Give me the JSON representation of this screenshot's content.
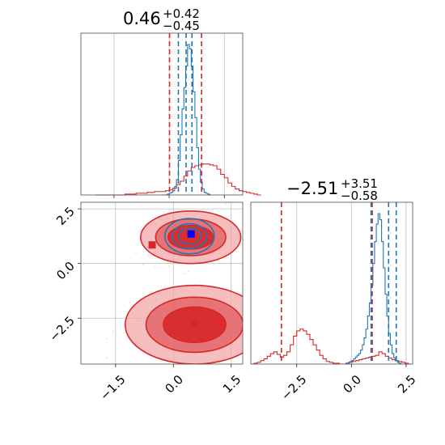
{
  "colors": {
    "red": "#d62728",
    "blue": "#1f77b4",
    "red_fill": "#f4a3a4",
    "red_mid": "#e05a5c"
  },
  "chart_data": [
    {
      "type": "histogram",
      "panel": "top-left",
      "title": {
        "value": "0.46",
        "plus": "+0.42",
        "minus": "−0.45"
      },
      "xlim": [
        -2.4,
        2.0
      ],
      "xticks": [
        -1.5,
        0.0,
        1.5
      ],
      "series": [
        {
          "color": "#d62728",
          "bin_edges_start": -2.0,
          "bin_width": 0.1,
          "counts": [
            0,
            0,
            0,
            0,
            0,
            0,
            0,
            0,
            1,
            1,
            1,
            2,
            2,
            2,
            3,
            3,
            4,
            4,
            4,
            5,
            6,
            8,
            12,
            16,
            22,
            28,
            32,
            34,
            35,
            36,
            36,
            35,
            34,
            30,
            24,
            20,
            14,
            10,
            7,
            5,
            4,
            3,
            2,
            1,
            0
          ]
        },
        {
          "color": "#1f77b4",
          "bin_edges_start": -0.2,
          "bin_width": 0.05,
          "counts": [
            0,
            0,
            0,
            1,
            2,
            3,
            5,
            10,
            18,
            40,
            70,
            100,
            125,
            150,
            175,
            170,
            150,
            120,
            90,
            55,
            30,
            15,
            7,
            3,
            2,
            1,
            0
          ]
        }
      ],
      "quantile_lines": [
        {
          "color": "#d62728",
          "x": 0.01
        },
        {
          "color": "#d62728",
          "x": 0.88
        },
        {
          "color": "#1f77b4",
          "x": 0.25
        },
        {
          "color": "#1f77b4",
          "x": 0.46
        },
        {
          "color": "#1f77b4",
          "x": 0.62
        }
      ]
    },
    {
      "type": "contour",
      "panel": "bottom-left",
      "xlim": [
        -2.4,
        1.8
      ],
      "ylim": [
        -4.6,
        2.8
      ],
      "xticks": [
        -1.5,
        0.0,
        1.5
      ],
      "yticks": [
        -2.5,
        0.0,
        2.5
      ],
      "red_modes": [
        {
          "cx": 0.45,
          "cy": 1.2,
          "sx": 0.65,
          "sy": 0.6
        },
        {
          "cx": 0.55,
          "cy": -2.8,
          "sx": 0.9,
          "sy": 0.9
        }
      ],
      "blue_mode": {
        "cx": 0.42,
        "cy": 1.25,
        "sx": 0.32,
        "sy": 0.45
      },
      "red_markers": [
        {
          "x": -0.55,
          "y": 0.85
        },
        {
          "x": 0.55,
          "y": -2.7
        }
      ],
      "blue_marker": {
        "x": 0.46,
        "y": 1.35
      }
    },
    {
      "type": "histogram",
      "panel": "bottom-right",
      "title": {
        "value": "−2.51",
        "plus": "+3.51",
        "minus": "−0.58"
      },
      "xlim": [
        -4.6,
        2.8
      ],
      "xticks": [
        -2.5,
        0.0,
        2.5
      ],
      "series": [
        {
          "color": "#d62728",
          "bin_edges_start": -4.6,
          "bin_width": 0.15,
          "counts": [
            0,
            1,
            2,
            4,
            6,
            9,
            12,
            14,
            11,
            8,
            10,
            14,
            22,
            32,
            38,
            40,
            38,
            34,
            28,
            22,
            16,
            10,
            6,
            3,
            2,
            1,
            1,
            0,
            0,
            1,
            2,
            3,
            4,
            5,
            6,
            7,
            8,
            9,
            10,
            14,
            12,
            9,
            7,
            5,
            4,
            3,
            2,
            1,
            0
          ]
        },
        {
          "color": "#1f77b4",
          "bin_edges_start": -0.3,
          "bin_width": 0.08,
          "counts": [
            0,
            1,
            2,
            3,
            4,
            6,
            8,
            10,
            12,
            16,
            22,
            30,
            40,
            55,
            70,
            90,
            115,
            140,
            160,
            172,
            165,
            140,
            110,
            80,
            55,
            35,
            22,
            12,
            7,
            4,
            2,
            1,
            0
          ]
        }
      ],
      "quantile_lines": [
        {
          "color": "#d62728",
          "x": -3.2
        },
        {
          "color": "#d62728",
          "x": 0.95
        },
        {
          "color": "#1f77b4",
          "x": 0.9
        },
        {
          "color": "#1f77b4",
          "x": 1.7
        },
        {
          "color": "#1f77b4",
          "x": 2.05
        }
      ]
    }
  ]
}
